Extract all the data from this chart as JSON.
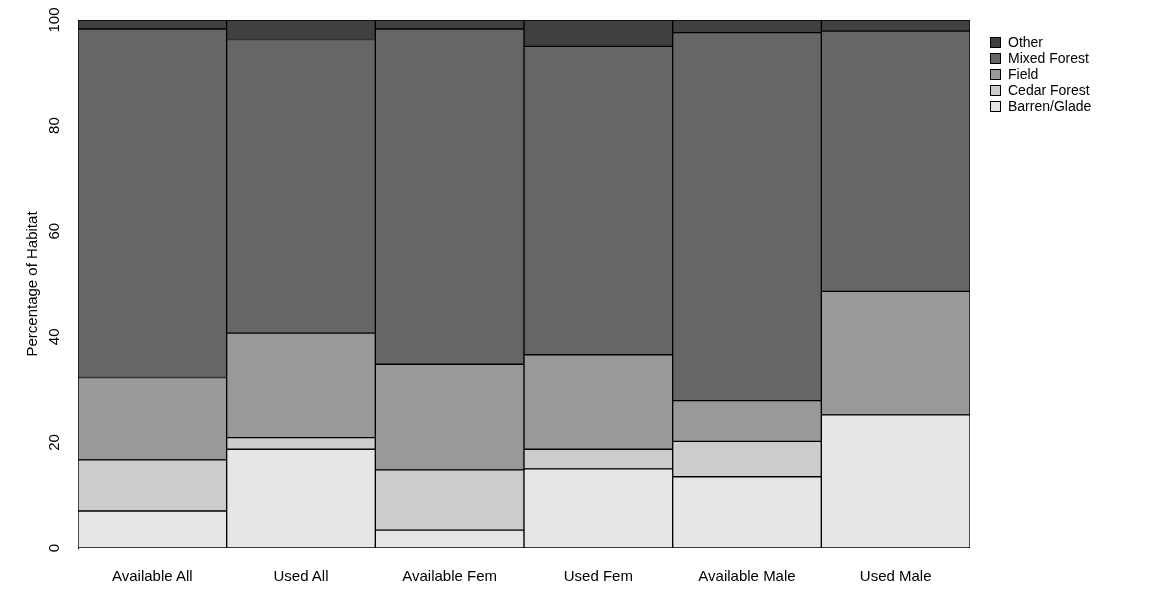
{
  "chart_data": {
    "type": "bar",
    "stacked": true,
    "ylabel": "Percentage of Habitat",
    "categories": [
      "Available All",
      "Used All",
      "Available Fem",
      "Used Fem",
      "Available Male",
      "Used Male"
    ],
    "series": [
      {
        "name": "Barren/Glade",
        "color": "#e6e6e6",
        "values": [
          7,
          18.7,
          3.4,
          15,
          13.5,
          25.2
        ]
      },
      {
        "name": "Cedar Forest",
        "color": "#cccccc",
        "values": [
          9.7,
          2.2,
          11.4,
          3.7,
          6.7,
          0
        ]
      },
      {
        "name": "Field",
        "color": "#999999",
        "values": [
          15.6,
          19.8,
          20,
          17.9,
          7.7,
          23.4
        ]
      },
      {
        "name": "Mixed Forest",
        "color": "#666666",
        "values": [
          66,
          55.6,
          63.5,
          58.4,
          69.7,
          49.3
        ]
      },
      {
        "name": "Other",
        "color": "#404040",
        "values": [
          1.7,
          3.7,
          1.7,
          5,
          2.4,
          2.1
        ]
      }
    ],
    "ylim": [
      0,
      100
    ],
    "yticks": [
      0,
      20,
      40,
      60,
      80,
      100
    ],
    "grid": false,
    "legend": "top right"
  }
}
